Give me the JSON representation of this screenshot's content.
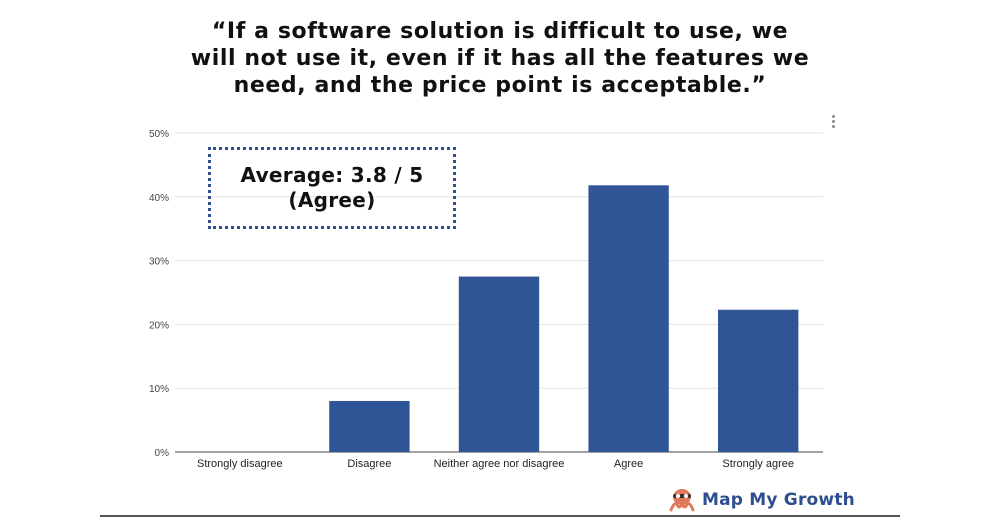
{
  "title_lines": [
    "“If a software solution is difficult to use, we",
    "will not use it, even if it has all the features we",
    "need, and the price point is acceptable.”"
  ],
  "annotation": {
    "line1": "Average: 3.8 / 5",
    "line2": "(Agree)"
  },
  "brand": {
    "name": "Map My Growth",
    "color": "#2e4f8f",
    "icon": "octopus-logo-icon"
  },
  "menu": {
    "icon": "more-vertical-icon"
  },
  "colors": {
    "bar": "#2f5597",
    "grid": "#e3e3e3",
    "axis": "#444444"
  },
  "chart_data": {
    "type": "bar",
    "categories": [
      "Strongly disagree",
      "Disagree",
      "Neither agree nor disagree",
      "Agree",
      "Strongly agree"
    ],
    "values": [
      0,
      8,
      27.5,
      41.8,
      22.3
    ],
    "ylim": [
      0,
      50
    ],
    "yticks": [
      0,
      10,
      20,
      30,
      40,
      50
    ],
    "ytick_labels": [
      "0%",
      "10%",
      "20%",
      "30%",
      "40%",
      "50%"
    ],
    "grid": true,
    "legend": "none"
  }
}
